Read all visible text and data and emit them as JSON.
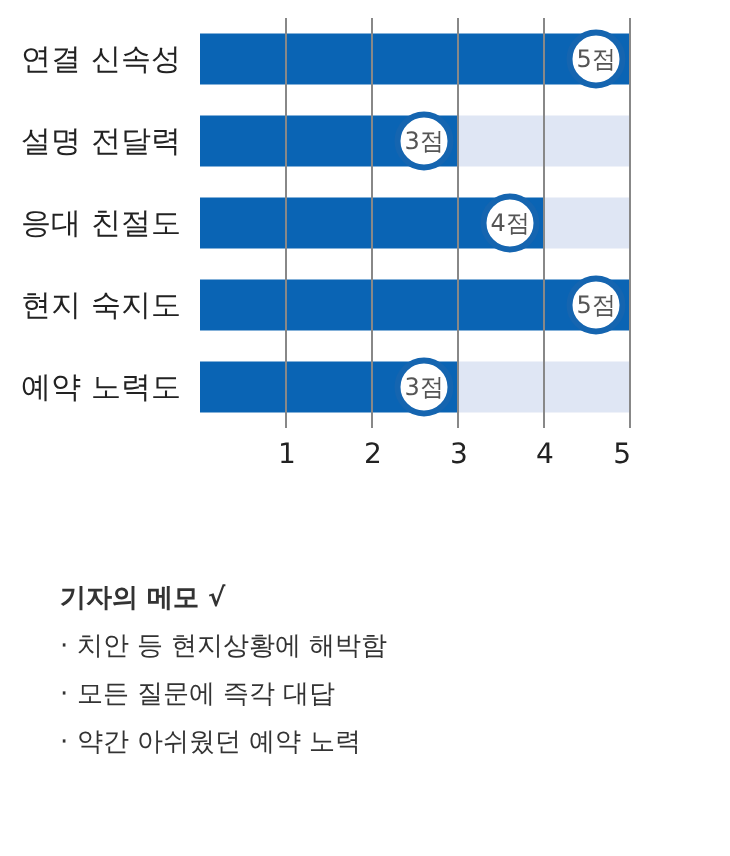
{
  "chart_data": {
    "type": "bar",
    "orientation": "horizontal",
    "stacked": true,
    "categories": [
      "연결 신속성",
      "설명 전달력",
      "응대 친절도",
      "현지 숙지도",
      "예약 노력도"
    ],
    "series": [
      {
        "color": "#0a64b4",
        "values": [
          5,
          3,
          4,
          5,
          3
        ],
        "value_labels": [
          "5점",
          "3점",
          "4점",
          "5점",
          "3점"
        ]
      },
      {
        "color": "#dfe6f4",
        "values": [
          0,
          2,
          1,
          0,
          2
        ]
      }
    ],
    "xlim": [
      0,
      5
    ],
    "xticks": [
      1,
      2,
      3,
      4,
      5
    ],
    "grid": "x",
    "marker": "circle",
    "annotations": [
      "기자의 메모 √",
      "· 치안 등 현지상황에 해박함",
      "· 모든 질문에 즉각 대답",
      "· 약간 아쉬웠던 예약 노력"
    ]
  }
}
